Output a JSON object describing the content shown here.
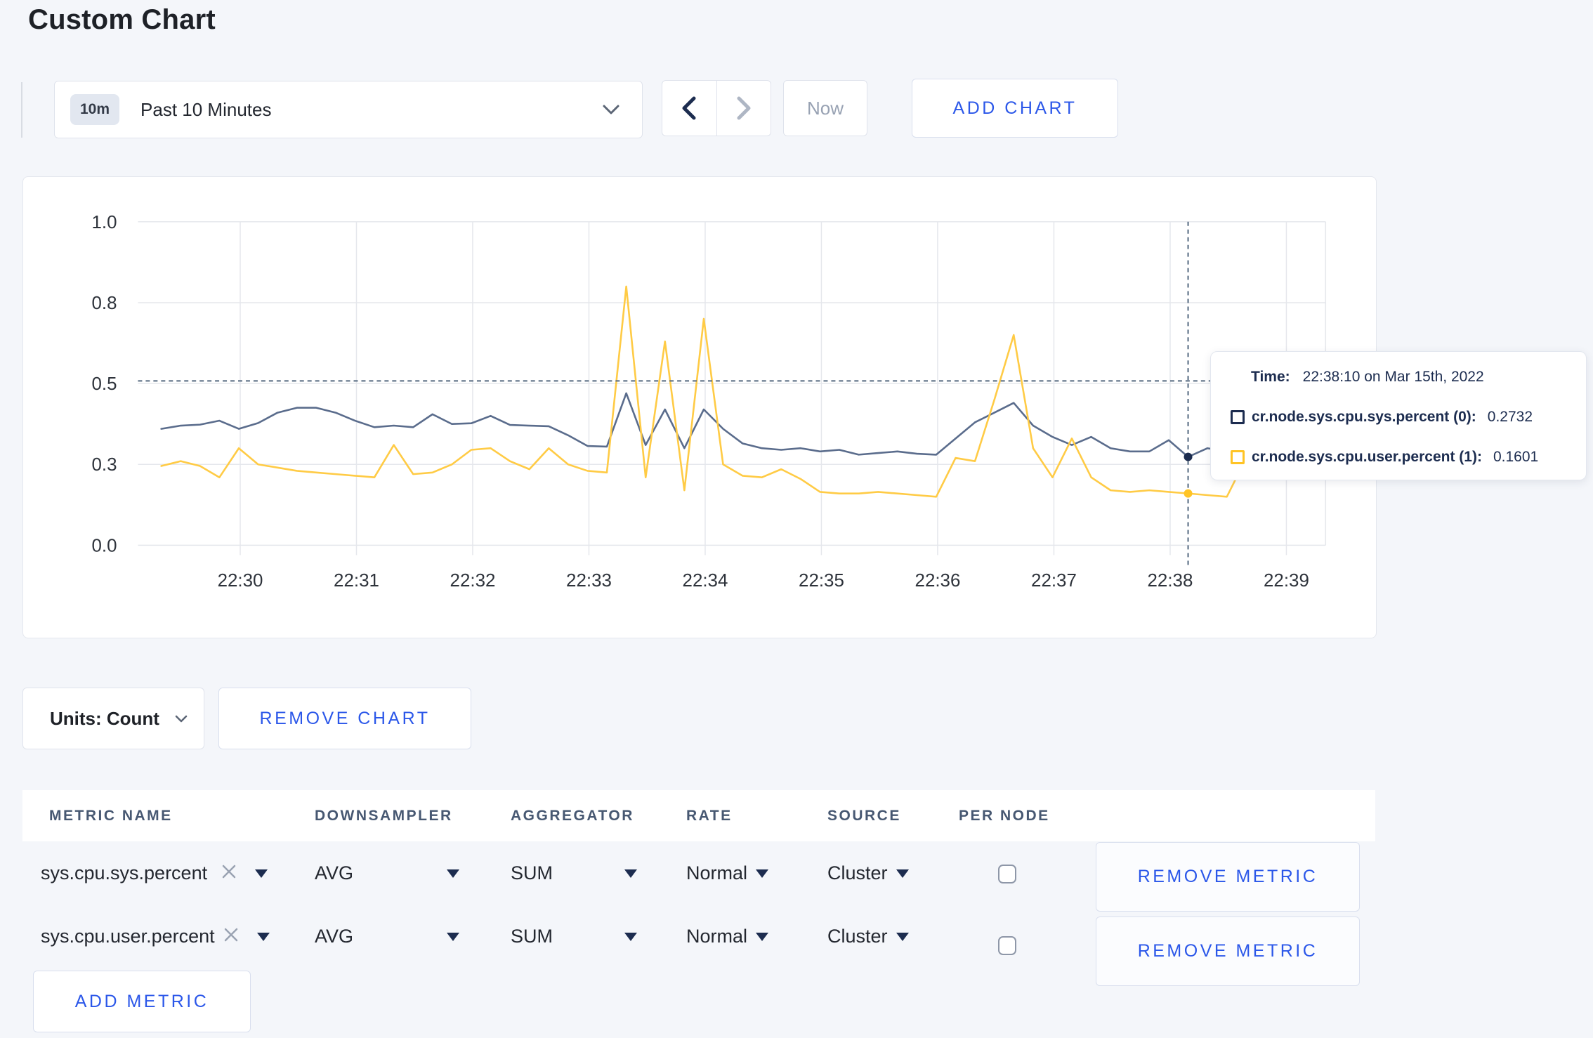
{
  "page": {
    "title": "Custom Chart"
  },
  "toolbar": {
    "time_badge": "10m",
    "time_label": "Past 10 Minutes",
    "now_label": "Now",
    "add_chart_label": "ADD CHART"
  },
  "tooltip": {
    "time_label": "Time:",
    "time_value": "22:38:10 on Mar 15th, 2022",
    "series": [
      {
        "label": "cr.node.sys.cpu.sys.percent (0):",
        "value": "0.2732",
        "color": "#1c2c4f"
      },
      {
        "label": "cr.node.sys.cpu.user.percent (1):",
        "value": "0.1601",
        "color": "#ffc425"
      }
    ]
  },
  "units": {
    "label": "Units: Count",
    "remove_chart_label": "REMOVE CHART"
  },
  "table": {
    "headers": [
      "METRIC NAME",
      "DOWNSAMPLER",
      "AGGREGATOR",
      "RATE",
      "SOURCE",
      "PER NODE"
    ],
    "rows": [
      {
        "metric": "sys.cpu.sys.percent",
        "downsampler": "AVG",
        "aggregator": "SUM",
        "rate": "Normal",
        "source": "Cluster",
        "per_node_checked": false,
        "remove_label": "REMOVE METRIC"
      },
      {
        "metric": "sys.cpu.user.percent",
        "downsampler": "AVG",
        "aggregator": "SUM",
        "rate": "Normal",
        "source": "Cluster",
        "per_node_checked": false,
        "remove_label": "REMOVE METRIC"
      }
    ],
    "add_metric_label": "ADD METRIC"
  },
  "chart_data": {
    "type": "line",
    "title": "",
    "xlabel": "",
    "ylabel": "",
    "ylim": [
      0,
      1
    ],
    "grid": true,
    "legend_position": "tooltip",
    "x_start": "22:29:20",
    "x_step_seconds": 10,
    "x_ticks": [
      "22:30",
      "22:31",
      "22:32",
      "22:33",
      "22:34",
      "22:35",
      "22:36",
      "22:37",
      "22:38",
      "22:39"
    ],
    "y_ticks": [
      {
        "label": "1.0",
        "value": 1.0
      },
      {
        "label": "0.8",
        "value": 0.75
      },
      {
        "label": "0.5",
        "value": 0.5
      },
      {
        "label": "0.3",
        "value": 0.25
      },
      {
        "label": "0.0",
        "value": 0.0
      }
    ],
    "series": [
      {
        "name": "cr.node.sys.cpu.sys.percent",
        "color": "#5a6c8c",
        "dot_color": "#1c2c4f",
        "values": [
          0.36,
          0.37,
          0.373,
          0.385,
          0.36,
          0.378,
          0.41,
          0.425,
          0.425,
          0.41,
          0.385,
          0.365,
          0.37,
          0.365,
          0.405,
          0.375,
          0.377,
          0.4,
          0.372,
          0.37,
          0.368,
          0.34,
          0.307,
          0.305,
          0.47,
          0.31,
          0.42,
          0.3,
          0.42,
          0.36,
          0.315,
          0.3,
          0.295,
          0.3,
          0.29,
          0.295,
          0.28,
          0.285,
          0.29,
          0.283,
          0.28,
          0.33,
          0.38,
          0.41,
          0.44,
          0.37,
          0.335,
          0.31,
          0.335,
          0.3,
          0.29,
          0.29,
          0.325,
          0.2732,
          0.3,
          0.29,
          0.285,
          0.31,
          0.3,
          0.305
        ]
      },
      {
        "name": "cr.node.sys.cpu.user.percent",
        "color": "#ffcb45",
        "dot_color": "#ffc425",
        "values": [
          0.245,
          0.26,
          0.245,
          0.21,
          0.3,
          0.25,
          0.24,
          0.23,
          0.225,
          0.22,
          0.215,
          0.21,
          0.31,
          0.22,
          0.225,
          0.25,
          0.295,
          0.3,
          0.26,
          0.235,
          0.3,
          0.25,
          0.23,
          0.225,
          0.8,
          0.21,
          0.63,
          0.17,
          0.7,
          0.25,
          0.215,
          0.21,
          0.235,
          0.205,
          0.165,
          0.16,
          0.16,
          0.165,
          0.16,
          0.155,
          0.15,
          0.27,
          0.26,
          0.45,
          0.65,
          0.3,
          0.21,
          0.33,
          0.21,
          0.17,
          0.165,
          0.17,
          0.165,
          0.1601,
          0.155,
          0.15,
          0.27,
          0.3,
          0.24,
          0.27
        ]
      }
    ],
    "crosshair": {
      "time": "22:38:10",
      "x_index": 53,
      "hline_value": 0.508,
      "values": [
        0.2732,
        0.1601
      ]
    }
  }
}
